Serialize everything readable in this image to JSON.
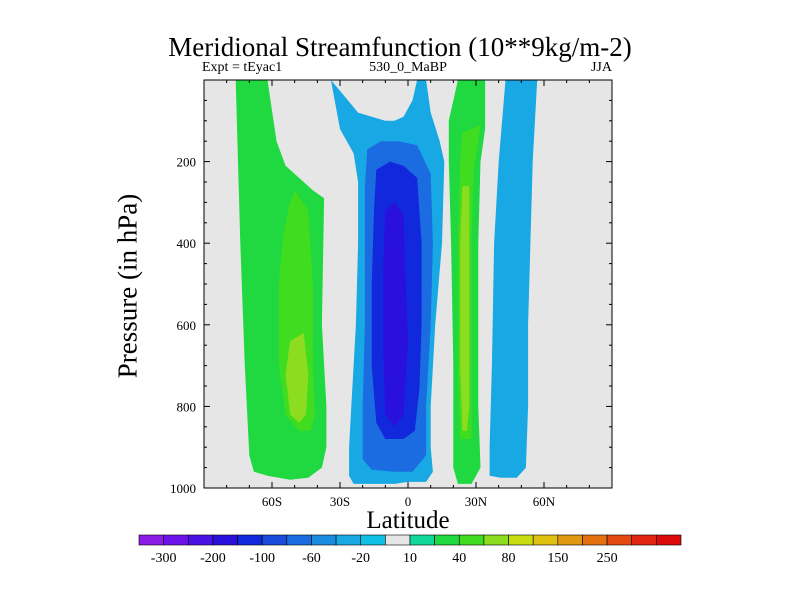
{
  "chart_data": {
    "type": "heatmap",
    "subtype": "filled-contour",
    "title": "Meridional Streamfunction (10**9kg/m-2)",
    "subtitles": {
      "left": "Expt = tEyac1",
      "center": "530_0_MaBP",
      "right": "JJA"
    },
    "xlabel": "Latitude",
    "ylabel": "Pressure (in hPa)",
    "xlim": [
      -90,
      90
    ],
    "ylim": [
      1000,
      0
    ],
    "x_ticks": [
      {
        "value": -60,
        "label": "60S"
      },
      {
        "value": -30,
        "label": "30S"
      },
      {
        "value": 0,
        "label": "0"
      },
      {
        "value": 30,
        "label": "30N"
      },
      {
        "value": 60,
        "label": "60N"
      }
    ],
    "y_ticks": [
      {
        "value": 200,
        "label": "200"
      },
      {
        "value": 400,
        "label": "400"
      },
      {
        "value": 600,
        "label": "600"
      },
      {
        "value": 800,
        "label": "800"
      },
      {
        "value": 1000,
        "label": "1000"
      }
    ],
    "colorbar": {
      "colors": [
        "#8a1ce6",
        "#6c12e8",
        "#4a10e4",
        "#2a10dc",
        "#1228dc",
        "#1a4cdc",
        "#1a6ce0",
        "#1a8ce0",
        "#18a8e4",
        "#10c0e4",
        "#e6e6e6",
        "#10d89c",
        "#20d840",
        "#40dc20",
        "#8cdc20",
        "#c8dc10",
        "#e0c010",
        "#e09810",
        "#e47010",
        "#e44a10",
        "#e02410",
        "#dc0a0a"
      ],
      "labels": [
        {
          "after_index": 0,
          "label": "-300"
        },
        {
          "after_index": 2,
          "label": "-200"
        },
        {
          "after_index": 4,
          "label": "-100"
        },
        {
          "after_index": 6,
          "label": "-60"
        },
        {
          "after_index": 8,
          "label": "-20"
        },
        {
          "after_index": 10,
          "label": "10"
        },
        {
          "after_index": 12,
          "label": "40"
        },
        {
          "after_index": 14,
          "label": "80"
        },
        {
          "after_index": 16,
          "label": "150"
        },
        {
          "after_index": 18,
          "label": "250"
        }
      ]
    },
    "cells": [
      {
        "name": "sh-positive-cell",
        "levels": [
          {
            "value": 10,
            "color": "#20d840",
            "outline": [
              [
                -76,
                0
              ],
              [
                -62,
                0
              ],
              [
                -58,
                150
              ],
              [
                -54,
                210
              ],
              [
                -42,
                270
              ],
              [
                -37,
                290
              ],
              [
                -38,
                600
              ],
              [
                -36,
                800
              ],
              [
                -36,
                900
              ],
              [
                -38,
                950
              ],
              [
                -44,
                975
              ],
              [
                -52,
                980
              ],
              [
                -62,
                970
              ],
              [
                -68,
                960
              ],
              [
                -70,
                920
              ],
              [
                -72,
                700
              ],
              [
                -74,
                400
              ],
              [
                -75,
                200
              ],
              [
                -76,
                0
              ]
            ]
          },
          {
            "value": 40,
            "color": "#40dc20",
            "outline": [
              [
                -50,
                270
              ],
              [
                -44,
                320
              ],
              [
                -42,
                500
              ],
              [
                -42,
                700
              ],
              [
                -41,
                820
              ],
              [
                -43,
                860
              ],
              [
                -48,
                860
              ],
              [
                -54,
                820
              ],
              [
                -57,
                700
              ],
              [
                -57,
                500
              ],
              [
                -55,
                380
              ],
              [
                -52,
                300
              ],
              [
                -50,
                270
              ]
            ]
          },
          {
            "value": 80,
            "color": "#8cdc20",
            "outline": [
              [
                -52,
                640
              ],
              [
                -46,
                620
              ],
              [
                -44,
                720
              ],
              [
                -45,
                820
              ],
              [
                -48,
                840
              ],
              [
                -52,
                820
              ],
              [
                -54,
                720
              ],
              [
                -52,
                640
              ]
            ]
          }
        ]
      },
      {
        "name": "tropical-negative-cell",
        "levels": [
          {
            "value": -20,
            "color": "#18a8e4",
            "outline": [
              [
                -34,
                0
              ],
              [
                -28,
                40
              ],
              [
                -22,
                80
              ],
              [
                -16,
                90
              ],
              [
                -10,
                100
              ],
              [
                -6,
                100
              ],
              [
                -2,
                90
              ],
              [
                2,
                50
              ],
              [
                4,
                0
              ],
              [
                8,
                0
              ],
              [
                10,
                80
              ],
              [
                14,
                150
              ],
              [
                16,
                200
              ],
              [
                15,
                400
              ],
              [
                12,
                600
              ],
              [
                10,
                800
              ],
              [
                10,
                900
              ],
              [
                11,
                960
              ],
              [
                8,
                985
              ],
              [
                0,
                985
              ],
              [
                -6,
                990
              ],
              [
                -14,
                990
              ],
              [
                -24,
                990
              ],
              [
                -26,
                970
              ],
              [
                -26,
                900
              ],
              [
                -25,
                800
              ],
              [
                -23,
                600
              ],
              [
                -22,
                400
              ],
              [
                -22,
                250
              ],
              [
                -24,
                180
              ],
              [
                -30,
                120
              ],
              [
                -34,
                0
              ]
            ]
          },
          {
            "value": -60,
            "color": "#1a6ce0",
            "outline": [
              [
                -18,
                170
              ],
              [
                -12,
                150
              ],
              [
                -4,
                150
              ],
              [
                4,
                160
              ],
              [
                10,
                230
              ],
              [
                11,
                400
              ],
              [
                10,
                600
              ],
              [
                8,
                800
              ],
              [
                8,
                920
              ],
              [
                2,
                960
              ],
              [
                -6,
                960
              ],
              [
                -16,
                955
              ],
              [
                -20,
                930
              ],
              [
                -20,
                800
              ],
              [
                -19,
                600
              ],
              [
                -19,
                400
              ],
              [
                -19,
                260
              ],
              [
                -18,
                170
              ]
            ]
          },
          {
            "value": -100,
            "color": "#1228dc",
            "outline": [
              [
                -14,
                220
              ],
              [
                -8,
                200
              ],
              [
                -2,
                210
              ],
              [
                4,
                240
              ],
              [
                6,
                400
              ],
              [
                6,
                600
              ],
              [
                5,
                760
              ],
              [
                3,
                860
              ],
              [
                -2,
                880
              ],
              [
                -10,
                880
              ],
              [
                -14,
                840
              ],
              [
                -16,
                700
              ],
              [
                -16,
                500
              ],
              [
                -15,
                320
              ],
              [
                -14,
                220
              ]
            ]
          },
          {
            "value": -200,
            "color": "#2a10dc",
            "outline": [
              [
                -10,
                320
              ],
              [
                -6,
                300
              ],
              [
                -2,
                330
              ],
              [
                -1,
                500
              ],
              [
                0,
                640
              ],
              [
                -2,
                820
              ],
              [
                -6,
                850
              ],
              [
                -10,
                820
              ],
              [
                -11,
                640
              ],
              [
                -11,
                480
              ],
              [
                -10,
                320
              ]
            ]
          }
        ]
      },
      {
        "name": "nh-positive-cell",
        "levels": [
          {
            "value": 10,
            "color": "#20d840",
            "outline": [
              [
                22,
                0
              ],
              [
                34,
                0
              ],
              [
                34,
                120
              ],
              [
                32,
                200
              ],
              [
                31,
                400
              ],
              [
                31,
                600
              ],
              [
                31,
                800
              ],
              [
                32,
                950
              ],
              [
                28,
                990
              ],
              [
                22,
                990
              ],
              [
                20,
                950
              ],
              [
                20,
                700
              ],
              [
                19,
                400
              ],
              [
                18,
                200
              ],
              [
                18,
                100
              ],
              [
                22,
                0
              ]
            ]
          },
          {
            "value": 40,
            "color": "#40dc20",
            "outline": [
              [
                24,
                130
              ],
              [
                32,
                110
              ],
              [
                29,
                220
              ],
              [
                28,
                400
              ],
              [
                28,
                600
              ],
              [
                28,
                800
              ],
              [
                28,
                880
              ],
              [
                23,
                880
              ],
              [
                22,
                700
              ],
              [
                22,
                400
              ],
              [
                23,
                200
              ],
              [
                24,
                130
              ]
            ]
          },
          {
            "value": 80,
            "color": "#8cdc20",
            "outline": [
              [
                24,
                260
              ],
              [
                27,
                260
              ],
              [
                27,
                400
              ],
              [
                27,
                600
              ],
              [
                27,
                800
              ],
              [
                26,
                860
              ],
              [
                24,
                860
              ],
              [
                23,
                700
              ],
              [
                23,
                400
              ],
              [
                24,
                260
              ]
            ]
          }
        ]
      },
      {
        "name": "nh-negative-cell",
        "levels": [
          {
            "value": -20,
            "color": "#18a8e4",
            "outline": [
              [
                43,
                0
              ],
              [
                57,
                0
              ],
              [
                55,
                200
              ],
              [
                54,
                400
              ],
              [
                53,
                600
              ],
              [
                53,
                800
              ],
              [
                52,
                950
              ],
              [
                48,
                975
              ],
              [
                41,
                975
              ],
              [
                36,
                970
              ],
              [
                36,
                900
              ],
              [
                37,
                700
              ],
              [
                38,
                400
              ],
              [
                40,
                200
              ],
              [
                43,
                0
              ]
            ]
          }
        ]
      }
    ]
  }
}
